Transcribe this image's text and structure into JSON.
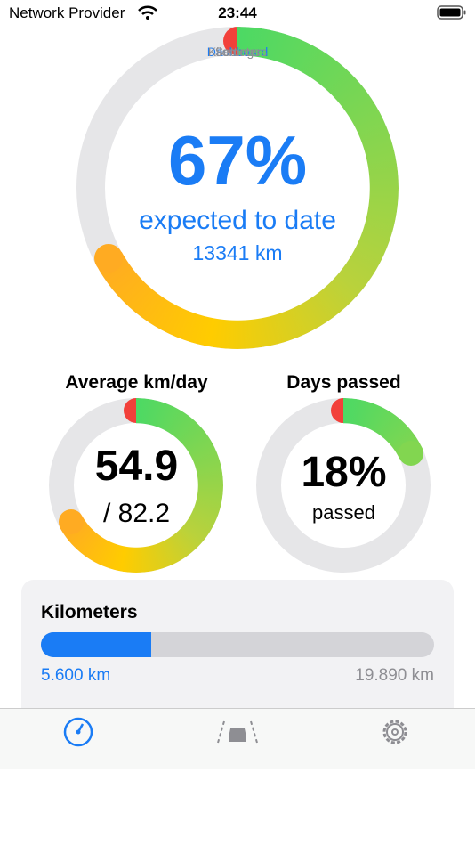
{
  "status_bar": {
    "carrier": "Network Provider",
    "time": "23:44"
  },
  "main_ring": {
    "percent": {
      "value": 67,
      "label": "67%"
    },
    "caption": "expected to date",
    "detail": "13341 km"
  },
  "average": {
    "title": "Average km/day",
    "value": 54.9,
    "target": {
      "value": 82.2,
      "label": "/ 82.2"
    }
  },
  "days": {
    "title": "Days passed",
    "percent": {
      "value": 18,
      "label": "18%"
    },
    "caption": "passed"
  },
  "kilometers": {
    "title": "Kilometers",
    "driven": {
      "value": 5600,
      "label": "5.600 km"
    },
    "goal": {
      "value": 19890,
      "label": "19.890 km"
    }
  },
  "tabs": [
    "Dashboard",
    "Kilometers",
    "Settings"
  ]
}
